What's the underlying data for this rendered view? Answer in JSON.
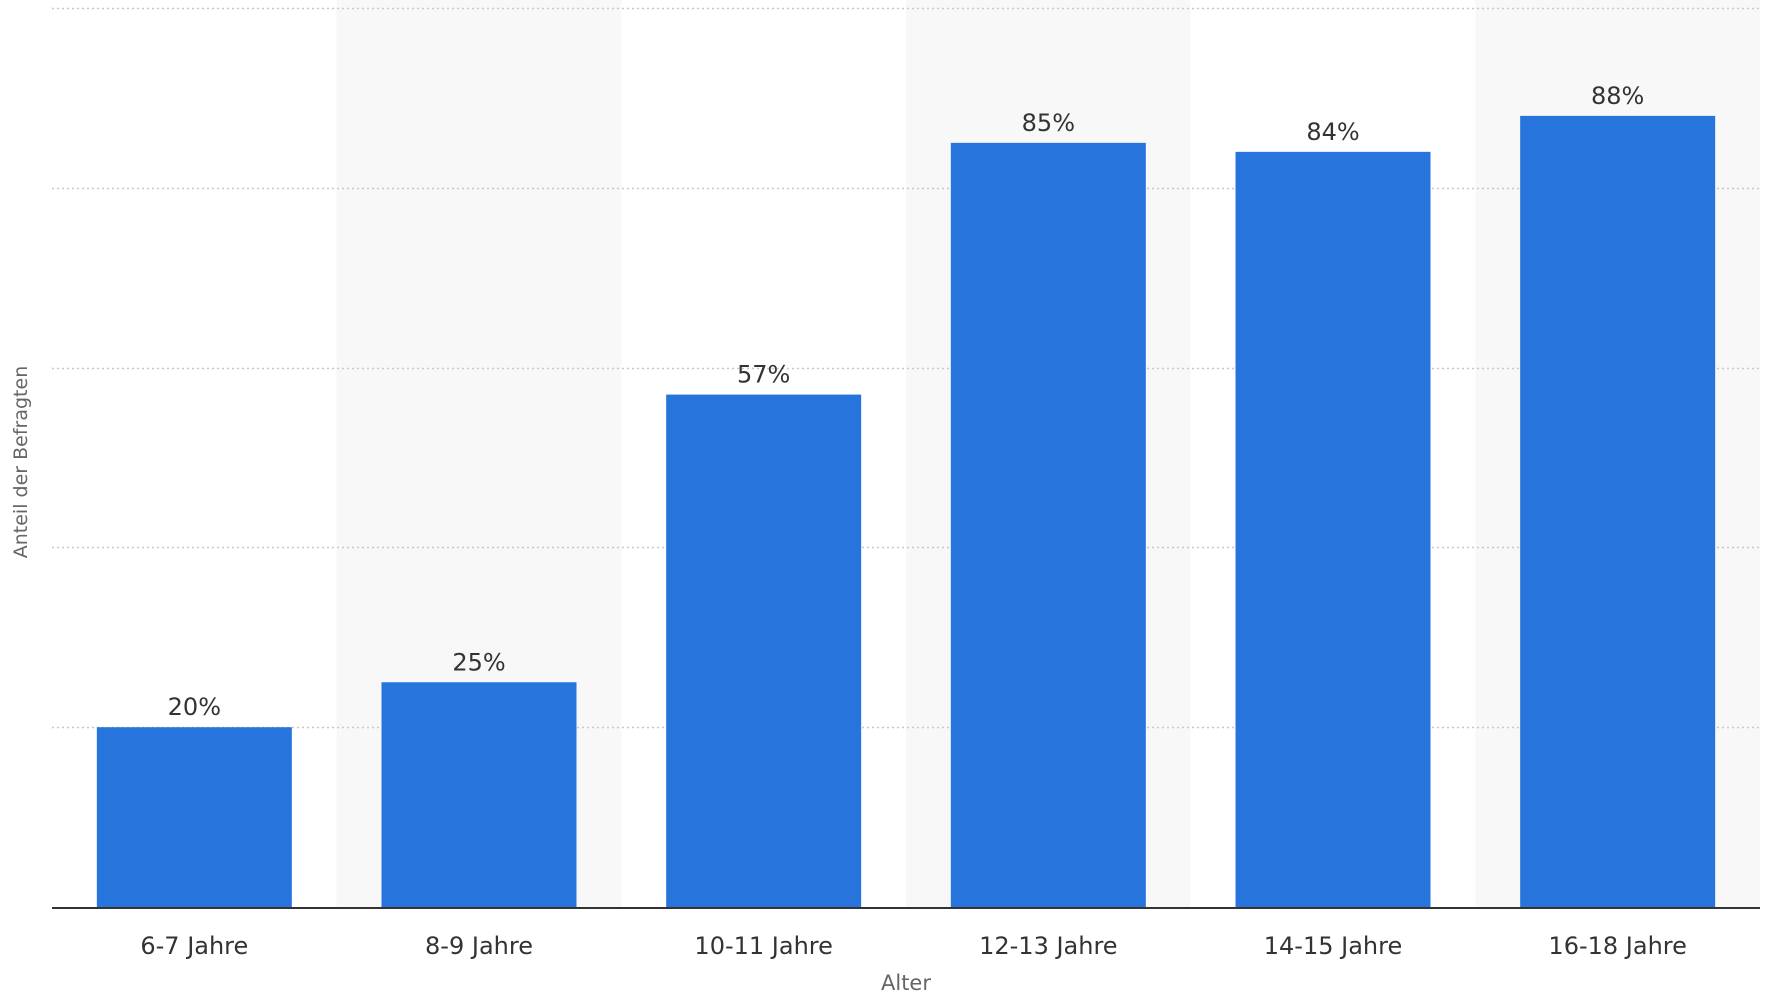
{
  "chart_data": {
    "type": "bar",
    "title": "",
    "categories": [
      "6-7 Jahre",
      "8-9 Jahre",
      "10-11 Jahre",
      "12-13 Jahre",
      "14-15 Jahre",
      "16-18 Jahre"
    ],
    "values": [
      20,
      25,
      57,
      85,
      84,
      88
    ],
    "data_labels": [
      "20%",
      "25%",
      "57%",
      "85%",
      "84%",
      "88%"
    ],
    "xlabel": "Alter",
    "ylabel": "Anteil der Befragten",
    "ylim": [
      0,
      100
    ],
    "y_tick_step": 20,
    "y_tick_labels_visible": false,
    "grid": "horizontal-dotted",
    "alternating_column_bands": true,
    "legend": "none",
    "colors": {
      "bar": "#2775dc",
      "band": "#f8f8f8",
      "grid": "#c8c8c8",
      "axis": "#333333",
      "text": "#333333",
      "axis_title": "#666666"
    }
  }
}
